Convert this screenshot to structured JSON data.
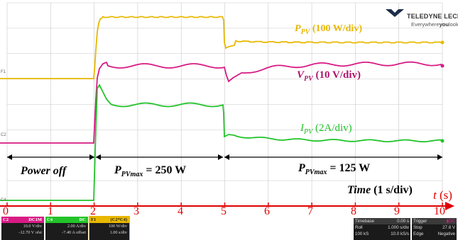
{
  "brand": {
    "name": "TELEDYNE LECROY",
    "tagline_pre": "Everywhere",
    "tagline_bold": "you",
    "tagline_post": "look"
  },
  "channel_markers": [
    "F1",
    "C2",
    "C4"
  ],
  "traces": {
    "ppv": {
      "label_var": "P",
      "label_sub": "PV",
      "label_scale": " (100 W/div)",
      "color": "#e8b800"
    },
    "vpv": {
      "label_var": "V",
      "label_sub": "PV",
      "label_scale": " (10 V/div)",
      "color": "#d81b84"
    },
    "ipv": {
      "label_var": "I",
      "label_sub": "PV",
      "label_scale": " (2A/div)",
      "color": "#22c32a"
    }
  },
  "annotations": {
    "power_off": "Power off",
    "pmax1_var": "P",
    "pmax1_sub": "PVmax",
    "pmax1_val": " = 250 W",
    "pmax2_var": "P",
    "pmax2_sub": "PVmax",
    "pmax2_val": " = 125 W",
    "time_label": "Time",
    "time_scale": " (1 s/div)",
    "t_axis": "t",
    "t_unit": " (s)"
  },
  "time_ticks": [
    "0",
    "1",
    "2",
    "3",
    "4",
    "5",
    "6",
    "7",
    "8",
    "9",
    "10"
  ],
  "colors": {
    "axis": "#e00000",
    "grid": "#c8c8c8",
    "arrow": "#000000"
  },
  "channels": [
    {
      "id": "C2",
      "coupling": "DC1M",
      "scale": "10.0 V/div",
      "offset": "-12.70 V ofst",
      "color": "#d81b84"
    },
    {
      "id": "C4",
      "coupling": "DC",
      "scale": "2.00 A/div",
      "offset": "-7.40 A offset",
      "color": "#22c32a"
    },
    {
      "id": "F1",
      "coupling": "(C2*C4)",
      "scale": "100 W/div",
      "offset": "1.00 s/div",
      "color": "#e8b800"
    }
  ],
  "timebase": {
    "title": "Timebase",
    "delay": "0.00 s",
    "mode": "Roll",
    "tdiv": "1.000 s/div",
    "samples": "100 kS",
    "rate": "10.0 kS/s"
  },
  "trigger": {
    "title": "Trigger",
    "mode": "Stop",
    "level": "27.8 V",
    "type": "Edge",
    "slope": "Negative"
  }
}
